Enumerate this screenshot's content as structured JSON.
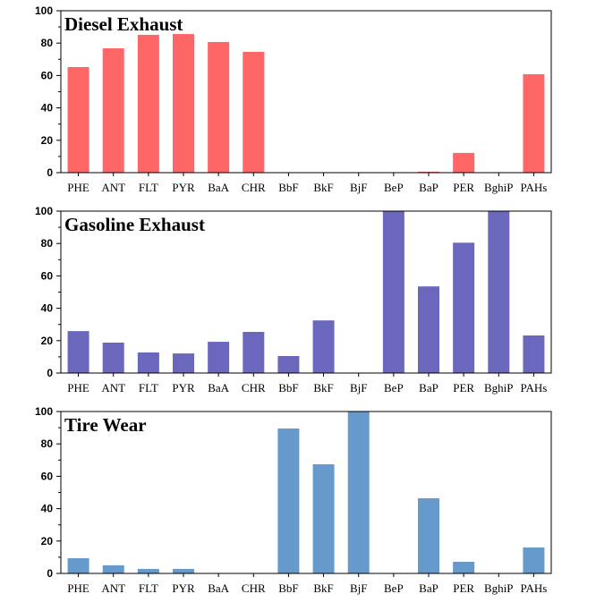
{
  "chart_data": [
    {
      "type": "bar",
      "title": "Diesel Exhaust",
      "categories": [
        "PHE",
        "ANT",
        "FLT",
        "PYR",
        "BaA",
        "CHR",
        "BbF",
        "BkF",
        "BjF",
        "BeP",
        "BaP",
        "PER",
        "BghiP",
        "PAHs"
      ],
      "values": [
        65.2,
        76.8,
        85.1,
        85.6,
        80.7,
        74.6,
        0,
        0,
        0,
        0,
        0.6,
        12.2,
        0,
        60.8
      ],
      "color": "#FF6666",
      "ylim": [
        0,
        100
      ],
      "yticks": [
        0,
        20,
        40,
        60,
        80,
        100
      ],
      "grid": false,
      "xlabel": "",
      "ylabel": ""
    },
    {
      "type": "bar",
      "title": "Gasoline Exhaust",
      "categories": [
        "PHE",
        "ANT",
        "FLT",
        "PYR",
        "BaA",
        "CHR",
        "BbF",
        "BkF",
        "BjF",
        "BeP",
        "BaP",
        "PER",
        "BghiP",
        "PAHs"
      ],
      "values": [
        25.9,
        18.8,
        12.7,
        12.1,
        19.3,
        25.4,
        10.5,
        32.5,
        0,
        100,
        53.5,
        80.5,
        100,
        23.2
      ],
      "color": "#6B67BC",
      "ylim": [
        0,
        100
      ],
      "yticks": [
        0,
        20,
        40,
        60,
        80,
        100
      ],
      "grid": false,
      "xlabel": "",
      "ylabel": ""
    },
    {
      "type": "bar",
      "title": "Tire Wear",
      "categories": [
        "PHE",
        "ANT",
        "FLT",
        "PYR",
        "BaA",
        "CHR",
        "BbF",
        "BkF",
        "BjF",
        "BeP",
        "BaP",
        "PER",
        "BghiP",
        "PAHs"
      ],
      "values": [
        9.4,
        5.0,
        2.8,
        2.8,
        0,
        0,
        89.5,
        67.4,
        100,
        0,
        46.4,
        7.2,
        0,
        16.0
      ],
      "color": "#6699CC",
      "ylim": [
        0,
        100
      ],
      "yticks": [
        0,
        20,
        40,
        60,
        80,
        100
      ],
      "grid": false,
      "xlabel": "",
      "ylabel": ""
    }
  ]
}
